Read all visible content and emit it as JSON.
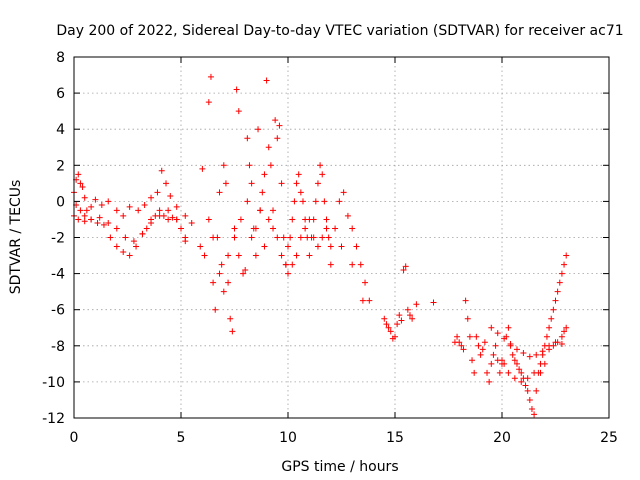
{
  "chart_data": {
    "type": "scatter",
    "title": "Day 200 of 2022, Sidereal Day-to-day VTEC variation (SDTVAR) for receiver ac71",
    "xlabel": "GPS time / hours",
    "ylabel": "SDTVAR / TECUs",
    "xlim": [
      0,
      25
    ],
    "ylim": [
      -12,
      8
    ],
    "x_ticks": [
      "0",
      "5",
      "10",
      "15",
      "20",
      "25"
    ],
    "y_ticks": [
      "-12",
      "-10",
      "-8",
      "-6",
      "-4",
      "-2",
      "0",
      "2",
      "4",
      "6",
      "8"
    ],
    "grid": true,
    "marker": "+",
    "series_color": "#ff0000",
    "series": [
      {
        "name": "SDTVAR",
        "x": [
          0.0,
          0.1,
          0.2,
          0.3,
          0.4,
          0.5,
          0.6,
          0.8,
          1.0,
          1.3,
          1.6,
          2.0,
          2.3,
          2.6,
          3.0,
          3.3,
          3.6,
          3.9,
          4.1,
          4.3,
          4.5,
          4.8,
          5.2,
          5.5,
          0.0,
          0.2,
          0.5,
          0.8,
          1.1,
          1.4,
          1.7,
          2.0,
          2.3,
          2.6,
          2.9,
          3.2,
          3.4,
          3.6,
          3.8,
          4.0,
          4.2,
          4.4,
          4.6,
          4.8,
          5.0,
          5.2,
          0.1,
          0.3,
          0.5,
          0.8,
          1.2,
          1.6,
          2.0,
          2.4,
          2.8,
          3.2,
          3.6,
          4.0,
          4.4,
          4.8,
          5.2,
          5.9,
          6.0,
          6.1,
          6.3,
          6.4,
          6.5,
          6.6,
          6.7,
          6.8,
          6.9,
          7.0,
          7.1,
          7.2,
          7.3,
          7.4,
          7.5,
          7.6,
          7.7,
          7.8,
          8.0,
          8.1,
          8.2,
          8.3,
          8.4,
          8.5,
          8.6,
          8.7,
          8.8,
          8.9,
          9.0,
          9.1,
          9.2,
          9.3,
          9.4,
          9.5,
          9.6,
          9.7,
          9.8,
          9.9,
          10.0,
          6.3,
          6.5,
          6.8,
          7.0,
          7.2,
          7.5,
          7.7,
          7.9,
          8.1,
          8.3,
          8.5,
          8.7,
          8.9,
          9.1,
          9.3,
          9.5,
          9.7,
          9.9,
          10.0,
          10.1,
          10.2,
          10.3,
          10.4,
          10.5,
          10.6,
          10.7,
          10.8,
          10.9,
          11.0,
          11.1,
          11.2,
          11.3,
          11.4,
          11.5,
          11.6,
          11.7,
          11.8,
          11.9,
          12.0,
          12.2,
          12.4,
          12.6,
          12.8,
          13.0,
          13.2,
          13.4,
          13.6,
          13.8,
          10.0,
          10.2,
          10.4,
          10.6,
          10.8,
          11.0,
          11.2,
          11.4,
          11.6,
          11.8,
          12.0,
          12.5,
          13.0,
          13.5,
          14.5,
          14.6,
          14.7,
          14.8,
          14.9,
          15.0,
          15.1,
          15.2,
          15.3,
          15.4,
          15.5,
          15.6,
          15.7,
          15.8,
          16.0,
          16.8,
          17.8,
          17.9,
          18.0,
          18.1,
          18.2,
          18.3,
          18.4,
          18.5,
          18.6,
          18.7,
          18.8,
          18.9,
          19.0,
          19.1,
          19.2,
          19.3,
          19.4,
          19.5,
          19.6,
          19.7,
          19.8,
          19.9,
          20.0,
          20.1,
          20.2,
          20.3,
          20.4,
          20.5,
          20.6,
          20.7,
          20.8,
          20.9,
          21.0,
          21.1,
          21.2,
          21.3,
          21.4,
          21.5,
          21.6,
          21.7,
          21.8,
          21.9,
          22.0,
          22.1,
          22.2,
          22.3,
          22.4,
          22.5,
          22.6,
          22.7,
          22.8,
          22.9,
          23.0,
          20.0,
          20.3,
          20.6,
          20.9,
          21.2,
          21.5,
          21.8,
          22.0,
          22.2,
          22.4,
          22.6,
          22.8,
          22.9,
          23.0,
          19.5,
          19.8,
          20.1,
          20.4,
          20.7,
          21.0,
          21.3,
          21.6,
          21.9,
          22.2,
          22.5,
          22.8
        ],
        "y": [
          0.5,
          1.2,
          1.5,
          1.0,
          0.8,
          0.2,
          -0.5,
          -0.3,
          0.1,
          -0.2,
          0.0,
          -0.5,
          -0.8,
          -0.3,
          -0.5,
          -0.2,
          0.2,
          0.5,
          1.7,
          1.0,
          0.3,
          -0.3,
          -0.8,
          -1.2,
          -0.8,
          -1.0,
          -1.1,
          -1.0,
          -1.2,
          -1.3,
          -2.0,
          -2.5,
          -2.8,
          -3.0,
          -2.5,
          -1.8,
          -1.5,
          -1.0,
          -0.8,
          -0.5,
          -0.8,
          -1.0,
          -0.9,
          -1.0,
          -1.5,
          -2.0,
          -0.2,
          -0.5,
          -0.8,
          -1.0,
          -0.9,
          -1.2,
          -1.5,
          -2.0,
          -2.2,
          -1.8,
          -1.2,
          -0.8,
          -0.5,
          -1.0,
          -2.2,
          -2.5,
          1.8,
          -3.0,
          5.5,
          6.9,
          -4.5,
          -6.0,
          -2.0,
          0.5,
          -3.5,
          2.0,
          1.0,
          -4.5,
          -6.5,
          -7.2,
          -2.0,
          6.2,
          5.0,
          -1.0,
          -3.8,
          3.5,
          2.0,
          1.0,
          -1.5,
          -3.0,
          4.0,
          -0.5,
          0.5,
          1.5,
          6.7,
          3.0,
          2.0,
          -1.5,
          4.5,
          3.5,
          4.2,
          1.0,
          -2.0,
          -3.5,
          -2.5,
          -1.0,
          -2.0,
          -4.0,
          -5.0,
          -3.0,
          -1.5,
          -3.0,
          -4.0,
          0.0,
          -2.0,
          -1.5,
          -0.5,
          -2.5,
          -1.0,
          -0.5,
          -2.0,
          -3.0,
          -3.5,
          -2.5,
          -2.0,
          -1.0,
          0.0,
          1.0,
          1.5,
          0.5,
          0.0,
          -1.0,
          -2.0,
          -3.0,
          -2.0,
          -1.0,
          0.0,
          1.0,
          2.0,
          1.5,
          0.0,
          -1.5,
          -2.0,
          -2.5,
          -1.5,
          0.0,
          0.5,
          -0.8,
          -1.5,
          -2.5,
          -3.5,
          -4.5,
          -5.5,
          -4.0,
          -3.5,
          -3.0,
          -2.0,
          -1.5,
          -1.0,
          -2.0,
          -2.5,
          -2.0,
          -1.0,
          -3.5,
          -2.5,
          -3.5,
          -5.5,
          -6.5,
          -6.8,
          -7.0,
          -7.2,
          -7.6,
          -7.5,
          -6.8,
          -6.3,
          -6.6,
          -3.8,
          -3.6,
          -6.0,
          -6.3,
          -6.5,
          -5.7,
          -5.6,
          -7.8,
          -7.5,
          -7.8,
          -8.0,
          -8.2,
          -5.5,
          -6.5,
          -7.5,
          -8.8,
          -9.5,
          -7.5,
          -8.0,
          -8.5,
          -8.2,
          -7.8,
          -9.5,
          -10.0,
          -9.0,
          -8.5,
          -8.0,
          -8.8,
          -9.5,
          -8.8,
          -9.0,
          -7.5,
          -7.0,
          -8.0,
          -8.5,
          -8.8,
          -9.0,
          -9.3,
          -9.5,
          -9.8,
          -10.2,
          -10.5,
          -11.0,
          -11.5,
          -11.8,
          -10.5,
          -9.5,
          -9.0,
          -8.5,
          -8.0,
          -7.5,
          -7.0,
          -6.5,
          -6.0,
          -5.5,
          -5.0,
          -4.5,
          -4.0,
          -3.5,
          -3.0,
          -9.0,
          -9.5,
          -9.8,
          -10.0,
          -9.8,
          -9.5,
          -9.5,
          -9.0,
          -8.2,
          -8.0,
          -7.8,
          -7.5,
          -7.2,
          -7.0,
          -7.0,
          -7.3,
          -7.6,
          -7.9,
          -8.2,
          -8.4,
          -8.6,
          -8.5,
          -8.3,
          -8.0,
          -7.8,
          -7.9
        ]
      }
    ]
  }
}
